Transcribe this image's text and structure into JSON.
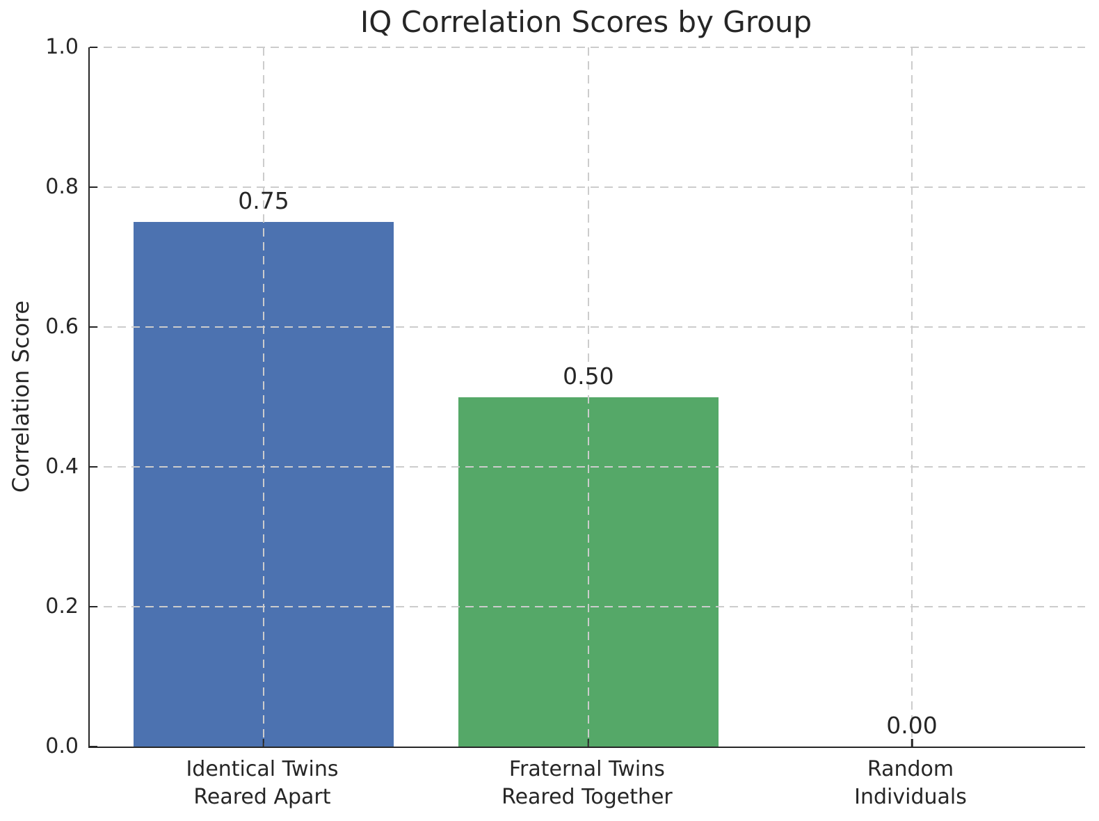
{
  "figure": {
    "background": "#ffffff",
    "text_color": "#262626",
    "spine_color": "#262626"
  },
  "chart_data": {
    "type": "bar",
    "title": "IQ Correlation Scores by Group",
    "xlabel": "",
    "ylabel": "Correlation Score",
    "categories": [
      "Identical Twins\nReared Apart",
      "Fraternal Twins\nReared Together",
      "Random Individuals"
    ],
    "values": [
      0.75,
      0.5,
      0.0
    ],
    "bar_value_labels": [
      "0.75",
      "0.50",
      "0.00"
    ],
    "bar_colors": [
      "#4C72B0",
      "#55A868",
      null
    ],
    "ylim": [
      0.0,
      1.0
    ],
    "ytick_labels": [
      "0.0",
      "0.2",
      "0.4",
      "0.6",
      "0.8",
      "1.0"
    ],
    "grid": {
      "style": "dashed",
      "color": "#cccccc",
      "axes": "both",
      "drawn_over_bars": true
    },
    "spines": [
      "left",
      "bottom"
    ],
    "tick_direction": "in",
    "legend": "none"
  }
}
